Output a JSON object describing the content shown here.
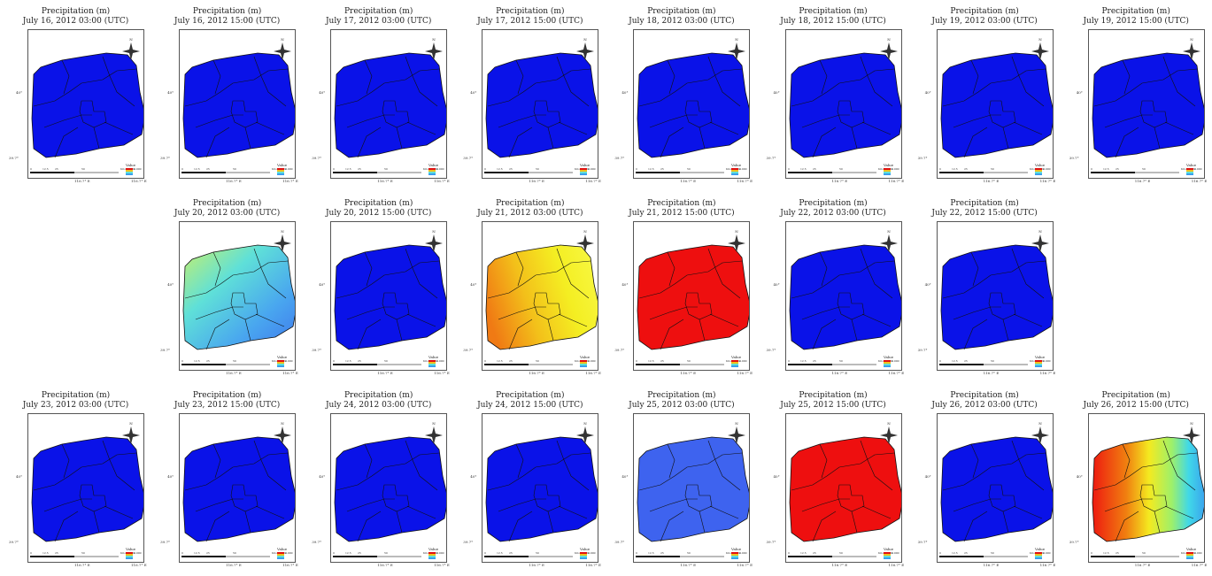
{
  "figure": {
    "panels": [
      {
        "title": "Precipitation (m)",
        "datetime": "July 16, 2012 03:00 (UTC)",
        "fill": "#0a12e8",
        "fill_type": "solid"
      },
      {
        "title": "Precipitation (m)",
        "datetime": "July 16, 2012 15:00 (UTC)",
        "fill": "#0a12e8",
        "fill_type": "solid"
      },
      {
        "title": "Precipitation (m)",
        "datetime": "July 17, 2012 03:00 (UTC)",
        "fill": "#0a12e8",
        "fill_type": "solid"
      },
      {
        "title": "Precipitation (m)",
        "datetime": "July 17, 2012 15:00 (UTC)",
        "fill": "#0a12e8",
        "fill_type": "solid"
      },
      {
        "title": "Precipitation (m)",
        "datetime": "July 18, 2012 03:00 (UTC)",
        "fill": "#0a12e8",
        "fill_type": "solid"
      },
      {
        "title": "Precipitation (m)",
        "datetime": "July 18, 2012 15:00 (UTC)",
        "fill": "#0a12e8",
        "fill_type": "solid"
      },
      {
        "title": "Precipitation (m)",
        "datetime": "July 19, 2012 03:00 (UTC)",
        "fill": "#0a12e8",
        "fill_type": "solid"
      },
      {
        "title": "Precipitation (m)",
        "datetime": "July 19, 2012 15:00 (UTC)",
        "fill": "#0a12e8",
        "fill_type": "solid"
      },
      {
        "title": "",
        "datetime": "",
        "fill": "",
        "fill_type": "empty"
      },
      {
        "title": "Precipitation (m)",
        "datetime": "July 20, 2012 03:00 (UTC)",
        "fill": "#4fa8ef",
        "fill_type": "gradient-green-blue"
      },
      {
        "title": "Precipitation (m)",
        "datetime": "July 20, 2012 15:00 (UTC)",
        "fill": "#0a12e8",
        "fill_type": "solid"
      },
      {
        "title": "Precipitation (m)",
        "datetime": "July 21, 2012 03:00 (UTC)",
        "fill": "#f2d21a",
        "fill_type": "gradient-orange-yellow"
      },
      {
        "title": "Precipitation (m)",
        "datetime": "July 21, 2012 15:00 (UTC)",
        "fill": "#ee0f0f",
        "fill_type": "solid"
      },
      {
        "title": "Precipitation (m)",
        "datetime": "July 22, 2012 03:00 (UTC)",
        "fill": "#0a12e8",
        "fill_type": "solid"
      },
      {
        "title": "Precipitation (m)",
        "datetime": "July 22, 2012 15:00 (UTC)",
        "fill": "#0a12e8",
        "fill_type": "solid"
      },
      {
        "title": "",
        "datetime": "",
        "fill": "",
        "fill_type": "empty"
      },
      {
        "title": "Precipitation (m)",
        "datetime": "July 23, 2012 03:00 (UTC)",
        "fill": "#0a12e8",
        "fill_type": "solid"
      },
      {
        "title": "Precipitation (m)",
        "datetime": "July 23, 2012 15:00 (UTC)",
        "fill": "#0a12e8",
        "fill_type": "solid"
      },
      {
        "title": "Precipitation (m)",
        "datetime": "July 24, 2012 03:00 (UTC)",
        "fill": "#0a12e8",
        "fill_type": "solid"
      },
      {
        "title": "Precipitation (m)",
        "datetime": "July 24, 2012 15:00 (UTC)",
        "fill": "#0a12e8",
        "fill_type": "solid"
      },
      {
        "title": "Precipitation (m)",
        "datetime": "July 25, 2012 03:00 (UTC)",
        "fill": "#3e63ef",
        "fill_type": "solid"
      },
      {
        "title": "Precipitation (m)",
        "datetime": "July 25, 2012 15:00 (UTC)",
        "fill": "#ee0f0f",
        "fill_type": "solid"
      },
      {
        "title": "Precipitation (m)",
        "datetime": "July 26, 2012 03:00 (UTC)",
        "fill": "#0a12e8",
        "fill_type": "solid"
      },
      {
        "title": "Precipitation (m)",
        "datetime": "July 26, 2012 15:00 (UTC)",
        "fill": "#f08010",
        "fill_type": "gradient-red-yellow-cyan"
      }
    ],
    "axis_labels": {
      "lat_top": "40°",
      "lat_bottom": "39.7°",
      "lon_left": "116.7° E",
      "lon_right": "116.7° E"
    },
    "compass_label": "N",
    "scale_labels": [
      "0",
      "12.5",
      "25",
      "50",
      "Kilometers"
    ],
    "legend": {
      "title": "Value",
      "value": "0.000"
    }
  }
}
